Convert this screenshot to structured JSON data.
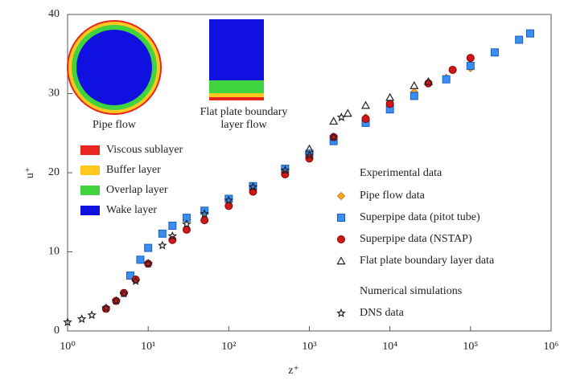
{
  "chart_data": {
    "type": "scatter",
    "x_label": "z⁺",
    "y_label": "u⁺",
    "xscale": "log",
    "xlim": [
      1,
      1000000
    ],
    "ylim": [
      0,
      40
    ],
    "xticks": [
      {
        "value": 1,
        "label": "10⁰"
      },
      {
        "value": 10,
        "label": "10¹"
      },
      {
        "value": 100,
        "label": "10²"
      },
      {
        "value": 1000,
        "label": "10³"
      },
      {
        "value": 10000,
        "label": "10⁴"
      },
      {
        "value": 100000,
        "label": "10⁵"
      },
      {
        "value": 1000000,
        "label": "10⁶"
      }
    ],
    "yticks": [
      0,
      10,
      20,
      30,
      40
    ],
    "insets": [
      "Pipe flow",
      "Flat plate boundary layer flow"
    ],
    "layers": [
      {
        "name": "Viscous sublayer",
        "color": "#e8251f"
      },
      {
        "name": "Buffer layer",
        "color": "#ffc81e"
      },
      {
        "name": "Overlap layer",
        "color": "#3fd43f"
      },
      {
        "name": "Wake layer",
        "color": "#1010e0"
      }
    ],
    "legend_titles": [
      "Experimental data",
      "Numerical simulations"
    ],
    "series": [
      {
        "name": "Pipe flow data",
        "color": "#f5a623",
        "marker": "diamond",
        "x": [
          1000,
          2000,
          5000,
          10000,
          20000,
          50000,
          100000
        ],
        "values": [
          22.5,
          24.5,
          27,
          28.5,
          30.2,
          32,
          33.2
        ]
      },
      {
        "name": "Superpipe data (pitot tube)",
        "color": "#3a8ef0",
        "marker": "square",
        "x": [
          6,
          8,
          10,
          15,
          20,
          30,
          50,
          100,
          200,
          500,
          1000,
          2000,
          5000,
          10000,
          20000,
          50000,
          100000,
          200000,
          400000,
          550000
        ],
        "values": [
          7,
          9,
          10.5,
          12.3,
          13.3,
          14.3,
          15.2,
          16.7,
          18.3,
          20.5,
          22.4,
          24,
          26.3,
          28,
          29.7,
          31.8,
          33.5,
          35.2,
          36.8,
          37.6
        ]
      },
      {
        "name": "Superpipe data (NSTAP)",
        "color": "#d01818",
        "marker": "circle",
        "x": [
          3,
          4,
          5,
          7,
          10,
          20,
          30,
          50,
          100,
          200,
          500,
          1000,
          2000,
          5000,
          10000,
          30000,
          60000,
          100000
        ],
        "values": [
          2.8,
          3.8,
          4.8,
          6.5,
          8.5,
          11.5,
          12.8,
          14,
          15.8,
          17.6,
          19.8,
          21.8,
          24.5,
          26.8,
          28.7,
          31.3,
          33,
          34.5
        ]
      },
      {
        "name": "Flat plate boundary layer data",
        "color": "#222222",
        "marker": "triangle",
        "x": [
          1000,
          2000,
          3000,
          5000,
          10000,
          20000,
          30000
        ],
        "values": [
          23,
          26.5,
          27.5,
          28.5,
          29.5,
          31,
          31.5
        ]
      },
      {
        "name": "DNS data",
        "color": "#222222",
        "marker": "star",
        "x": [
          1,
          1.5,
          2,
          3,
          4,
          5,
          7,
          10,
          15,
          20,
          30,
          50,
          100,
          200,
          500,
          1000,
          2000,
          2500
        ],
        "values": [
          1.1,
          1.5,
          2,
          2.9,
          3.8,
          4.7,
          6.3,
          8.5,
          10.8,
          12,
          13.5,
          14.8,
          16.5,
          18.2,
          20.3,
          22.2,
          24.5,
          27
        ]
      }
    ]
  }
}
